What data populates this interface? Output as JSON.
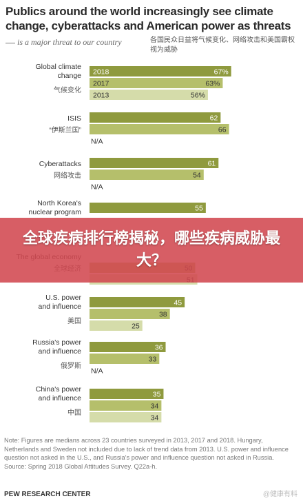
{
  "header": {
    "title": "Publics around the world increasingly see climate change, cyberattacks and American power as threats",
    "subtitle": "is a major threat to our country",
    "subtitle_cn": "各国民众日益将气候变化、网络攻击和美国霸权视为威胁"
  },
  "banner": {
    "text": "全球疾病排行榜揭秘，哪些疾病威胁最大？"
  },
  "footer": {
    "note": "Note: Figures are medians across 23 countries surveyed in 2013, 2017 and 2018. Hungary, Netherlands and Sweden not included due to lack of trend data from 2013. U.S. power and influence question not asked in the U.S., and Russia's power and influence question not asked in Russia.",
    "source": "Source: Spring 2018 Global Attitudes Survey. Q22a-h.",
    "org": "PEW RESEARCH CENTER",
    "watermark": "@健康有料"
  },
  "colors": {
    "bar_2018": "#8f9a3e",
    "bar_2017": "#b5bf6b",
    "bar_2013": "#d5dcaa",
    "banner": "#d24850"
  },
  "chart_data": {
    "type": "bar",
    "orientation": "horizontal",
    "xlim": [
      0,
      100
    ],
    "groups": [
      {
        "label": "Global climate change",
        "label_cn": "气候变化",
        "bars": [
          {
            "year": "2018",
            "value": 67,
            "label": "67%"
          },
          {
            "year": "2017",
            "value": 63,
            "label": "63%"
          },
          {
            "year": "2013",
            "value": 56,
            "label": "56%"
          }
        ]
      },
      {
        "label": "ISIS",
        "label_cn": "“伊斯兰国”",
        "bars": [
          {
            "year": "2018",
            "value": 62,
            "label": "62"
          },
          {
            "year": "2017",
            "value": 66,
            "label": "66"
          },
          {
            "year": "2013",
            "value": null,
            "label": "N/A"
          }
        ]
      },
      {
        "label": "Cyberattacks",
        "label_cn": "网络攻击",
        "bars": [
          {
            "year": "2018",
            "value": 61,
            "label": "61"
          },
          {
            "year": "2017",
            "value": 54,
            "label": "54"
          },
          {
            "year": "2013",
            "value": null,
            "label": "N/A"
          }
        ]
      },
      {
        "label": "North Korea's nuclear program",
        "label_cn": "",
        "bars": [
          {
            "year": "2018",
            "value": 55,
            "label": "55"
          },
          {
            "year": "2017",
            "value": null,
            "label": ""
          },
          {
            "year": "2013",
            "value": null,
            "label": ""
          }
        ]
      },
      {
        "label": "The global economy",
        "label_cn": "全球经济",
        "bars": [
          {
            "year": "2018",
            "value": null,
            "label": ""
          },
          {
            "year": "2017",
            "value": 50,
            "label": "50"
          },
          {
            "year": "2013",
            "value": 51,
            "label": "51"
          }
        ]
      },
      {
        "label": "U.S. power and influence",
        "label_cn": "美国",
        "bars": [
          {
            "year": "2018",
            "value": 45,
            "label": "45"
          },
          {
            "year": "2017",
            "value": 38,
            "label": "38"
          },
          {
            "year": "2013",
            "value": 25,
            "label": "25"
          }
        ]
      },
      {
        "label": "Russia's power and influence",
        "label_cn": "俄罗斯",
        "bars": [
          {
            "year": "2018",
            "value": 36,
            "label": "36"
          },
          {
            "year": "2017",
            "value": 33,
            "label": "33"
          },
          {
            "year": "2013",
            "value": null,
            "label": "N/A"
          }
        ]
      },
      {
        "label": "China's power and influence",
        "label_cn": "中国",
        "bars": [
          {
            "year": "2018",
            "value": 35,
            "label": "35"
          },
          {
            "year": "2017",
            "value": 34,
            "label": "34"
          },
          {
            "year": "2013",
            "value": 34,
            "label": "34"
          }
        ]
      }
    ]
  }
}
